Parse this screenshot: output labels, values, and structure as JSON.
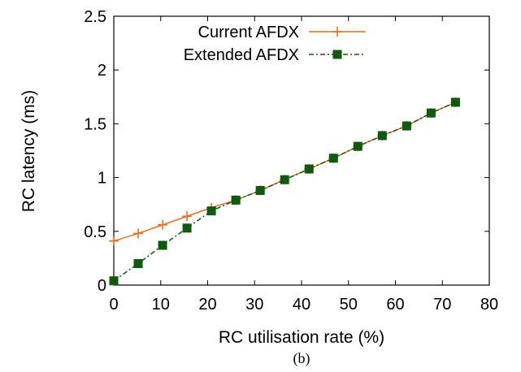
{
  "chart_data": {
    "type": "line",
    "xlabel": "RC utilisation rate (%)",
    "ylabel": "RC latency (ms)",
    "xlim": [
      0,
      80
    ],
    "ylim": [
      0,
      2.5
    ],
    "xticks": [
      "0",
      "10",
      "20",
      "30",
      "40",
      "50",
      "60",
      "70",
      "80"
    ],
    "yticks": [
      "0",
      "0.5",
      "1",
      "1.5",
      "2",
      "2.5"
    ],
    "grid": false,
    "legend_position": "top-right",
    "caption": "(b)",
    "series": [
      {
        "name": "Current AFDX",
        "color": "#f26b1d",
        "marker": "plus",
        "line_style": "solid",
        "x": [
          0,
          5.2,
          10.4,
          15.6,
          20.8,
          26,
          31.2,
          36.4,
          41.6,
          46.8,
          52,
          57.2,
          62.4,
          67.6,
          72.8
        ],
        "y": [
          0.41,
          0.48,
          0.56,
          0.64,
          0.72,
          0.79,
          0.88,
          0.98,
          1.08,
          1.18,
          1.29,
          1.39,
          1.48,
          1.6,
          1.7
        ]
      },
      {
        "name": "Extended AFDX",
        "color": "#0e5a0e",
        "marker": "square",
        "line_style": "dash-dot",
        "x": [
          0,
          5.2,
          10.4,
          15.6,
          20.8,
          26,
          31.2,
          36.4,
          41.6,
          46.8,
          52,
          57.2,
          62.4,
          67.6,
          72.8
        ],
        "y": [
          0.04,
          0.2,
          0.37,
          0.53,
          0.69,
          0.79,
          0.88,
          0.98,
          1.08,
          1.18,
          1.29,
          1.39,
          1.48,
          1.6,
          1.7
        ]
      }
    ]
  }
}
